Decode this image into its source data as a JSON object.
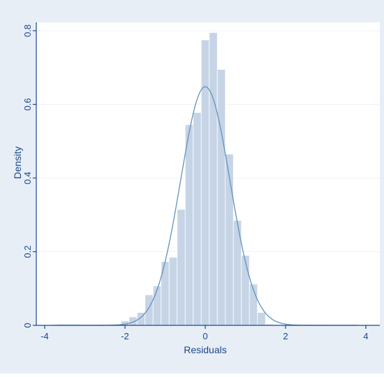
{
  "chart_data": {
    "type": "histogram",
    "title": "",
    "xlabel": "Residuals",
    "ylabel": "Density",
    "xlim": [
      -4.3,
      4.3
    ],
    "ylim": [
      0,
      0.82
    ],
    "xticks": [
      -4,
      -2,
      0,
      2,
      4
    ],
    "yticks": [
      0,
      0.2,
      0.4,
      0.6,
      0.8
    ],
    "xtick_labels": [
      "-4",
      "-2",
      "0",
      "2",
      "4"
    ],
    "ytick_labels": [
      "0",
      "0.2",
      "0.4",
      "0.6",
      "0.8"
    ],
    "grid": "horizontal",
    "bin_width": 0.2,
    "bins": [
      {
        "x0": -3.7,
        "x1": -3.5,
        "density": 0.003
      },
      {
        "x0": -3.5,
        "x1": -3.3,
        "density": 0.003
      },
      {
        "x0": -3.3,
        "x1": -3.1,
        "density": 0.003
      },
      {
        "x0": -3.1,
        "x1": -2.9,
        "density": 0.002
      },
      {
        "x0": -2.9,
        "x1": -2.7,
        "density": 0.002
      },
      {
        "x0": -2.7,
        "x1": -2.5,
        "density": 0.002
      },
      {
        "x0": -2.5,
        "x1": -2.3,
        "density": 0.002
      },
      {
        "x0": -2.3,
        "x1": -2.1,
        "density": 0.003
      },
      {
        "x0": -2.1,
        "x1": -1.9,
        "density": 0.012
      },
      {
        "x0": -1.9,
        "x1": -1.7,
        "density": 0.023
      },
      {
        "x0": -1.7,
        "x1": -1.5,
        "density": 0.035
      },
      {
        "x0": -1.5,
        "x1": -1.3,
        "density": 0.083
      },
      {
        "x0": -1.3,
        "x1": -1.1,
        "density": 0.107
      },
      {
        "x0": -1.1,
        "x1": -0.9,
        "density": 0.173
      },
      {
        "x0": -0.9,
        "x1": -0.7,
        "density": 0.185
      },
      {
        "x0": -0.7,
        "x1": -0.5,
        "density": 0.315
      },
      {
        "x0": -0.5,
        "x1": -0.3,
        "density": 0.545
      },
      {
        "x0": -0.3,
        "x1": -0.1,
        "density": 0.578
      },
      {
        "x0": -0.1,
        "x1": 0.1,
        "density": 0.775
      },
      {
        "x0": 0.1,
        "x1": 0.3,
        "density": 0.795
      },
      {
        "x0": 0.3,
        "x1": 0.5,
        "density": 0.695
      },
      {
        "x0": 0.5,
        "x1": 0.7,
        "density": 0.465
      },
      {
        "x0": 0.7,
        "x1": 0.9,
        "density": 0.285
      },
      {
        "x0": 0.9,
        "x1": 1.1,
        "density": 0.19
      },
      {
        "x0": 1.1,
        "x1": 1.3,
        "density": 0.112
      },
      {
        "x0": 1.3,
        "x1": 1.5,
        "density": 0.035
      },
      {
        "x0": 1.5,
        "x1": 1.7,
        "density": 0.003
      },
      {
        "x0": 1.7,
        "x1": 1.9,
        "density": 0.002
      },
      {
        "x0": 1.9,
        "x1": 2.1,
        "density": 0.002
      },
      {
        "x0": 2.1,
        "x1": 2.3,
        "density": 0.002
      },
      {
        "x0": 2.3,
        "x1": 2.5,
        "density": 0.002
      },
      {
        "x0": 2.5,
        "x1": 2.7,
        "density": 0.002
      },
      {
        "x0": 2.7,
        "x1": 2.9,
        "density": 0.002
      },
      {
        "x0": 2.9,
        "x1": 3.1,
        "density": 0.002
      }
    ],
    "density_curve": {
      "type": "normal",
      "mean": 0.0,
      "sd": 0.615,
      "peak": 0.648
    },
    "colors": {
      "outer_background": "#e8eef6",
      "plot_background": "#ffffff",
      "bar_fill": "#c6d4e6",
      "bar_edge": "#ffffff",
      "curve": "#5f93bb",
      "axis": "#1a478a",
      "grid": "#eef2f7"
    }
  }
}
